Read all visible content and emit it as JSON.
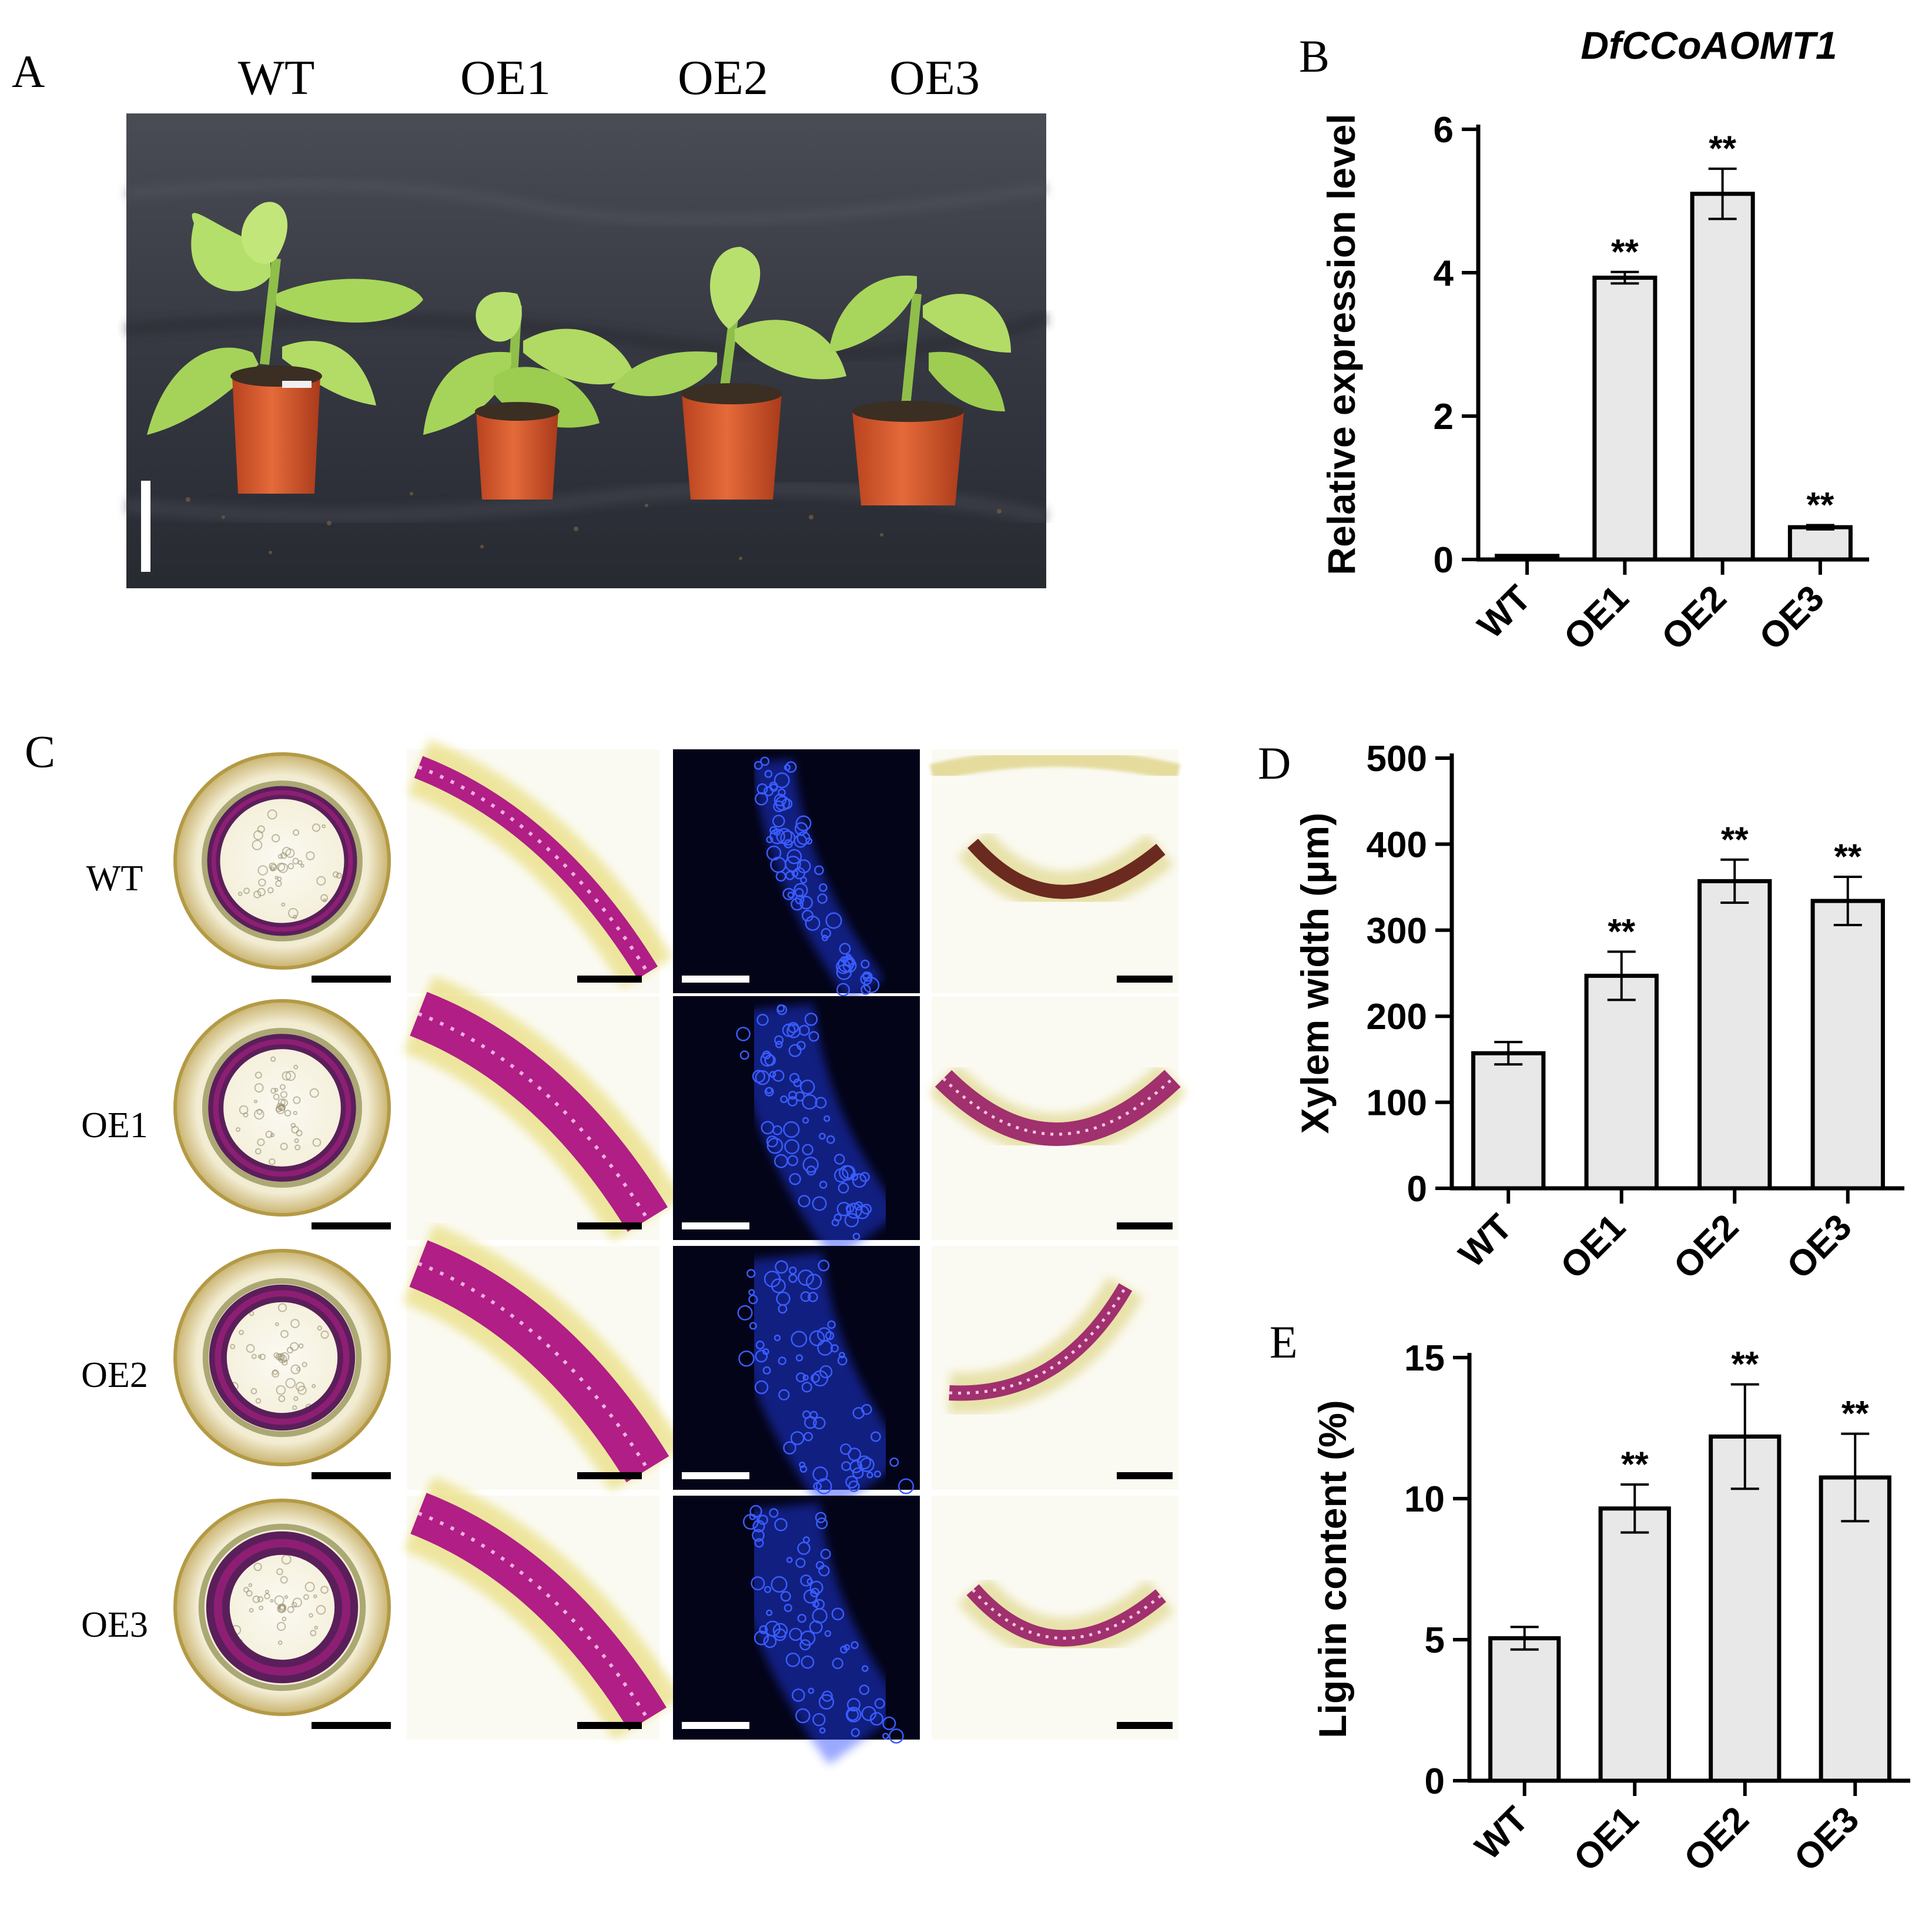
{
  "panel_letters": [
    "A",
    "B",
    "C",
    "D",
    "E"
  ],
  "panel_a": {
    "labels": [
      "WT",
      "OE1",
      "OE2",
      "OE3"
    ]
  },
  "panel_c": {
    "row_labels": [
      "WT",
      "OE1",
      "OE2",
      "OE3"
    ]
  },
  "colors": {
    "bar_fill": "#e8e8e8",
    "bar_stroke": "#000000",
    "photo_background": "#3a3d46",
    "pot": "#d8582e",
    "leaf": "#a9d65c",
    "phloroglucinol_stain": "#b01e86",
    "fluorescence_background": "#040418",
    "fluorescence_signal": "#2440ff"
  },
  "chart_data": [
    {
      "panel": "B",
      "type": "bar",
      "title": "DfCCoAOMT1",
      "xlabel": "",
      "ylabel": "Relative expression level",
      "categories": [
        "WT",
        "OE1",
        "OE2",
        "OE3"
      ],
      "values": [
        0.05,
        3.93,
        5.1,
        0.45
      ],
      "errors": [
        0.01,
        0.08,
        0.35,
        0.03
      ],
      "annotations": [
        "",
        "**",
        "**",
        "**"
      ],
      "ylim": [
        0,
        6
      ],
      "yticks": [
        0,
        2,
        4,
        6
      ]
    },
    {
      "panel": "D",
      "type": "bar",
      "title": "",
      "xlabel": "",
      "ylabel": "Xylem width (μm)",
      "categories": [
        "WT",
        "OE1",
        "OE2",
        "OE3"
      ],
      "values": [
        157,
        247,
        357,
        334
      ],
      "errors": [
        13,
        28,
        25,
        28
      ],
      "annotations": [
        "",
        "**",
        "**",
        "**"
      ],
      "ylim": [
        0,
        500
      ],
      "yticks": [
        0,
        100,
        200,
        300,
        400,
        500
      ]
    },
    {
      "panel": "E",
      "type": "bar",
      "title": "",
      "xlabel": "",
      "ylabel": "Lignin content (%)",
      "categories": [
        "WT",
        "OE1",
        "OE2",
        "OE3"
      ],
      "values": [
        5.05,
        9.65,
        12.2,
        10.75
      ],
      "errors": [
        0.4,
        0.85,
        1.85,
        1.55
      ],
      "annotations": [
        "",
        "**",
        "**",
        "**"
      ],
      "ylim": [
        0,
        15
      ],
      "yticks": [
        0,
        5,
        10,
        15
      ]
    }
  ]
}
